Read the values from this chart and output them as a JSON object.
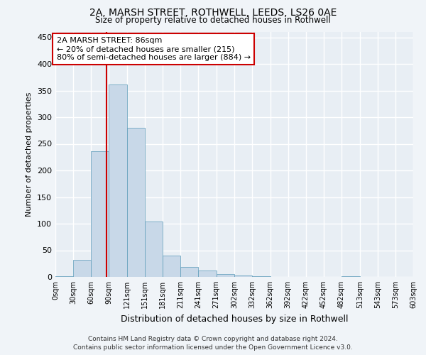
{
  "title1": "2A, MARSH STREET, ROTHWELL, LEEDS, LS26 0AE",
  "title2": "Size of property relative to detached houses in Rothwell",
  "xlabel": "Distribution of detached houses by size in Rothwell",
  "ylabel": "Number of detached properties",
  "footer1": "Contains HM Land Registry data © Crown copyright and database right 2024.",
  "footer2": "Contains public sector information licensed under the Open Government Licence v3.0.",
  "annotation_line1": "2A MARSH STREET: 86sqm",
  "annotation_line2": "← 20% of detached houses are smaller (215)",
  "annotation_line3": "80% of semi-detached houses are larger (884) →",
  "property_size": 86,
  "bin_edges": [
    0,
    30,
    60,
    90,
    121,
    151,
    181,
    211,
    241,
    271,
    302,
    332,
    362,
    392,
    422,
    452,
    482,
    513,
    543,
    573,
    603
  ],
  "bar_values": [
    2,
    32,
    236,
    362,
    280,
    104,
    40,
    19,
    12,
    6,
    3,
    1,
    0,
    0,
    0,
    0,
    1,
    0,
    0,
    0
  ],
  "bar_color": "#c8d8e8",
  "bar_edge_color": "#5a9ab8",
  "vline_color": "#cc0000",
  "vline_x": 86,
  "annotation_box_color": "#cc0000",
  "background_color": "#e8eef4",
  "grid_color": "#ffffff",
  "fig_background": "#f0f4f8",
  "ylim": [
    0,
    460
  ],
  "yticks": [
    0,
    50,
    100,
    150,
    200,
    250,
    300,
    350,
    400,
    450
  ],
  "tick_labels": [
    "0sqm",
    "30sqm",
    "60sqm",
    "90sqm",
    "121sqm",
    "151sqm",
    "181sqm",
    "211sqm",
    "241sqm",
    "271sqm",
    "302sqm",
    "332sqm",
    "362sqm",
    "392sqm",
    "422sqm",
    "452sqm",
    "482sqm",
    "513sqm",
    "543sqm",
    "573sqm",
    "603sqm"
  ]
}
